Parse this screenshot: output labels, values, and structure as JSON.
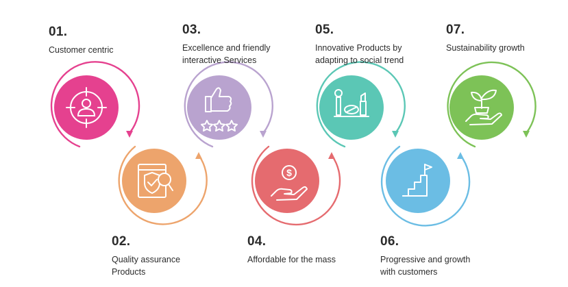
{
  "steps": [
    {
      "number": "01.",
      "label": "Customer centric",
      "color": "#E5418F",
      "icon": "target-user-icon"
    },
    {
      "number": "02.",
      "label": "Quality assurance\nProducts",
      "color": "#EDA46C",
      "icon": "shield-check-icon"
    },
    {
      "number": "03.",
      "label": "Excellence and friendly\ninteractive Services",
      "color": "#B9A3CF",
      "icon": "thumbs-up-stars-icon"
    },
    {
      "number": "04.",
      "label": "Affordable for the mass",
      "color": "#E56B6F",
      "icon": "hand-coin-icon"
    },
    {
      "number": "05.",
      "label": "Innovative Products by\nadapting to social trend",
      "color": "#5BC7B5",
      "icon": "cosmetics-icon"
    },
    {
      "number": "06.",
      "label": "Progressive and growth\nwith customers",
      "color": "#6BBDE4",
      "icon": "stairs-flag-icon"
    },
    {
      "number": "07.",
      "label": "Sustainability growth",
      "color": "#7DC257",
      "icon": "plant-hand-icon"
    }
  ]
}
